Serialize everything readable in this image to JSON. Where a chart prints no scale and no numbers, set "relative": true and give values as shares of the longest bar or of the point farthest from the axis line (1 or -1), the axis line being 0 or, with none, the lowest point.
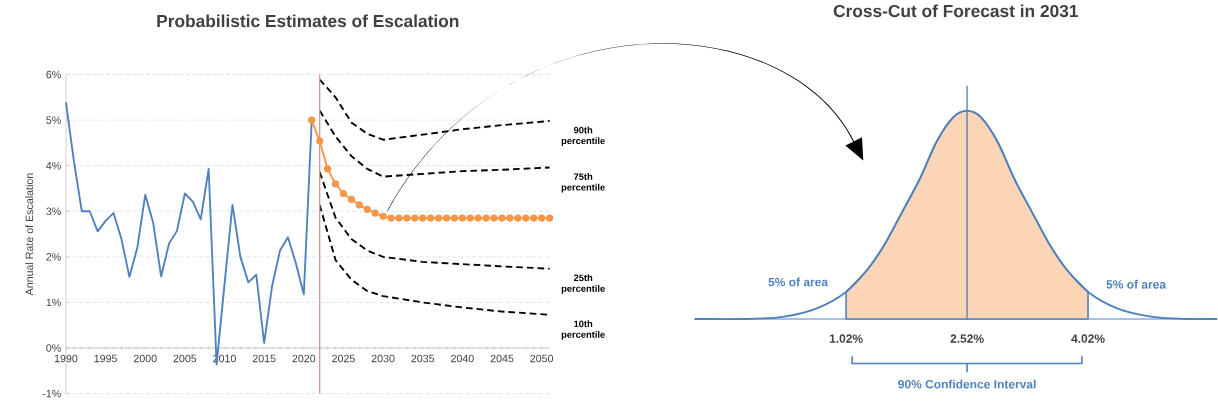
{
  "chart_data": [
    {
      "type": "line",
      "title": "Probabilistic Estimates of Escalation",
      "ylabel": "Annual Rate of Escalation",
      "xlim": [
        1990,
        2051
      ],
      "xticks": [
        1990,
        1995,
        2000,
        2005,
        2010,
        2015,
        2020,
        2025,
        2030,
        2035,
        2040,
        2045,
        2050
      ],
      "ylim": [
        -1,
        6
      ],
      "yticks": [
        {
          "value": -1,
          "label": "-1%"
        },
        {
          "value": 0,
          "label": "0%"
        },
        {
          "value": 1,
          "label": "1%"
        },
        {
          "value": 2,
          "label": "2%"
        },
        {
          "value": 3,
          "label": "3%"
        },
        {
          "value": 4,
          "label": "4%"
        },
        {
          "value": 5,
          "label": "5%"
        },
        {
          "value": 6,
          "label": "6%"
        }
      ],
      "grid": "y",
      "series": [
        {
          "color": "#4f81bd",
          "line_style": "solid",
          "marker": "none",
          "x": [
            1990,
            1991,
            1992,
            1993,
            1994,
            1995,
            1996,
            1997,
            1998,
            1999,
            2000,
            2001,
            2002,
            2003,
            2004,
            2005,
            2006,
            2007,
            2008,
            2009,
            2010,
            2011,
            2012,
            2013,
            2014,
            2015,
            2016,
            2017,
            2018,
            2019,
            2020,
            2021
          ],
          "values": [
            5.39,
            4.1,
            3.0,
            3.0,
            2.56,
            2.79,
            2.96,
            2.39,
            1.56,
            2.2,
            3.36,
            2.75,
            1.57,
            2.29,
            2.57,
            3.39,
            3.21,
            2.82,
            3.93,
            -0.36,
            1.4,
            3.14,
            2.0,
            1.44,
            1.61,
            0.11,
            1.36,
            2.14,
            2.43,
            1.86,
            1.18,
            5.0
          ]
        },
        {
          "color": "#f79646",
          "line_style": "solid",
          "marker": "circle",
          "x": [
            2021,
            2022,
            2023,
            2024,
            2025,
            2026,
            2027,
            2028,
            2029,
            2030,
            2031,
            2032,
            2033,
            2034,
            2035,
            2036,
            2037,
            2038,
            2039,
            2040,
            2041,
            2042,
            2043,
            2044,
            2045,
            2046,
            2047,
            2048,
            2049,
            2050,
            2051
          ],
          "values": [
            5.0,
            4.54,
            3.93,
            3.6,
            3.39,
            3.26,
            3.14,
            3.04,
            2.96,
            2.89,
            2.85,
            2.85,
            2.85,
            2.85,
            2.85,
            2.85,
            2.85,
            2.85,
            2.85,
            2.85,
            2.85,
            2.85,
            2.85,
            2.85,
            2.85,
            2.85,
            2.85,
            2.85,
            2.85,
            2.85,
            2.85
          ]
        },
        {
          "name": "90th percentile",
          "color": "#000000",
          "line_style": "dashed",
          "marker": "none",
          "x": [
            2022,
            2024,
            2026,
            2028,
            2030,
            2035,
            2040,
            2045,
            2051
          ],
          "values": [
            5.89,
            5.5,
            4.95,
            4.7,
            4.57,
            4.68,
            4.8,
            4.89,
            4.98
          ]
        },
        {
          "name": "75th percentile",
          "color": "#000000",
          "line_style": "dashed",
          "marker": "none",
          "x": [
            2022,
            2024,
            2026,
            2028,
            2030,
            2035,
            2040,
            2045,
            2051
          ],
          "values": [
            5.21,
            4.64,
            4.21,
            3.93,
            3.76,
            3.82,
            3.88,
            3.91,
            3.96
          ]
        },
        {
          "name": "25th percentile",
          "color": "#000000",
          "line_style": "dashed",
          "marker": "none",
          "x": [
            2022,
            2024,
            2026,
            2028,
            2030,
            2035,
            2040,
            2045,
            2051
          ],
          "values": [
            3.86,
            2.86,
            2.39,
            2.14,
            2.0,
            1.89,
            1.84,
            1.79,
            1.74
          ]
        },
        {
          "name": "10th percentile",
          "color": "#000000",
          "line_style": "dashed",
          "marker": "none",
          "x": [
            2022,
            2024,
            2026,
            2028,
            2030,
            2035,
            2040,
            2045,
            2051
          ],
          "values": [
            3.14,
            1.93,
            1.5,
            1.25,
            1.14,
            1.0,
            0.89,
            0.8,
            0.73
          ]
        }
      ],
      "ref_lines": [
        {
          "axis": "x",
          "value": 2022,
          "color": "#d99694"
        }
      ]
    },
    {
      "type": "line",
      "title": "Cross-Cut of Forecast in 2031",
      "relative": true,
      "xlim": [
        -0.86,
        5.62
      ],
      "xticks": [
        {
          "value": 1.02,
          "label": "1.02%"
        },
        {
          "value": 2.52,
          "label": "2.52%"
        },
        {
          "value": 4.02,
          "label": "4.02%"
        }
      ],
      "series": [
        {
          "type": "area",
          "color": "#fbd5b5",
          "x": [
            1.02,
            1.29,
            1.5,
            1.71,
            1.93,
            2.14,
            2.35,
            2.52,
            2.69,
            2.9,
            3.11,
            3.33,
            3.54,
            3.75,
            4.02
          ],
          "values": [
            0.13,
            0.24,
            0.36,
            0.51,
            0.67,
            0.85,
            0.97,
            1,
            0.97,
            0.85,
            0.67,
            0.51,
            0.36,
            0.24,
            0.13
          ]
        },
        {
          "color": "#4f81bd",
          "x": [
            -0.86,
            -0.2,
            0.23,
            0.65,
            1.02,
            1.29,
            1.5,
            1.71,
            1.93,
            2.14,
            2.35,
            2.52,
            2.69,
            2.9,
            3.11,
            3.33,
            3.54,
            3.75,
            4.02,
            4.39,
            4.82,
            5.24,
            5.62
          ],
          "values": [
            0,
            0,
            0.01,
            0.05,
            0.13,
            0.24,
            0.36,
            0.51,
            0.67,
            0.85,
            0.97,
            1,
            0.97,
            0.85,
            0.67,
            0.51,
            0.36,
            0.24,
            0.13,
            0.05,
            0.01,
            0,
            0
          ]
        }
      ],
      "ref_lines": [
        {
          "axis": "x",
          "value": 2.52,
          "color": "#4f81bd"
        }
      ],
      "annotations": [
        "5% of area",
        "5% of area",
        "90% Confidence Interval"
      ]
    }
  ]
}
